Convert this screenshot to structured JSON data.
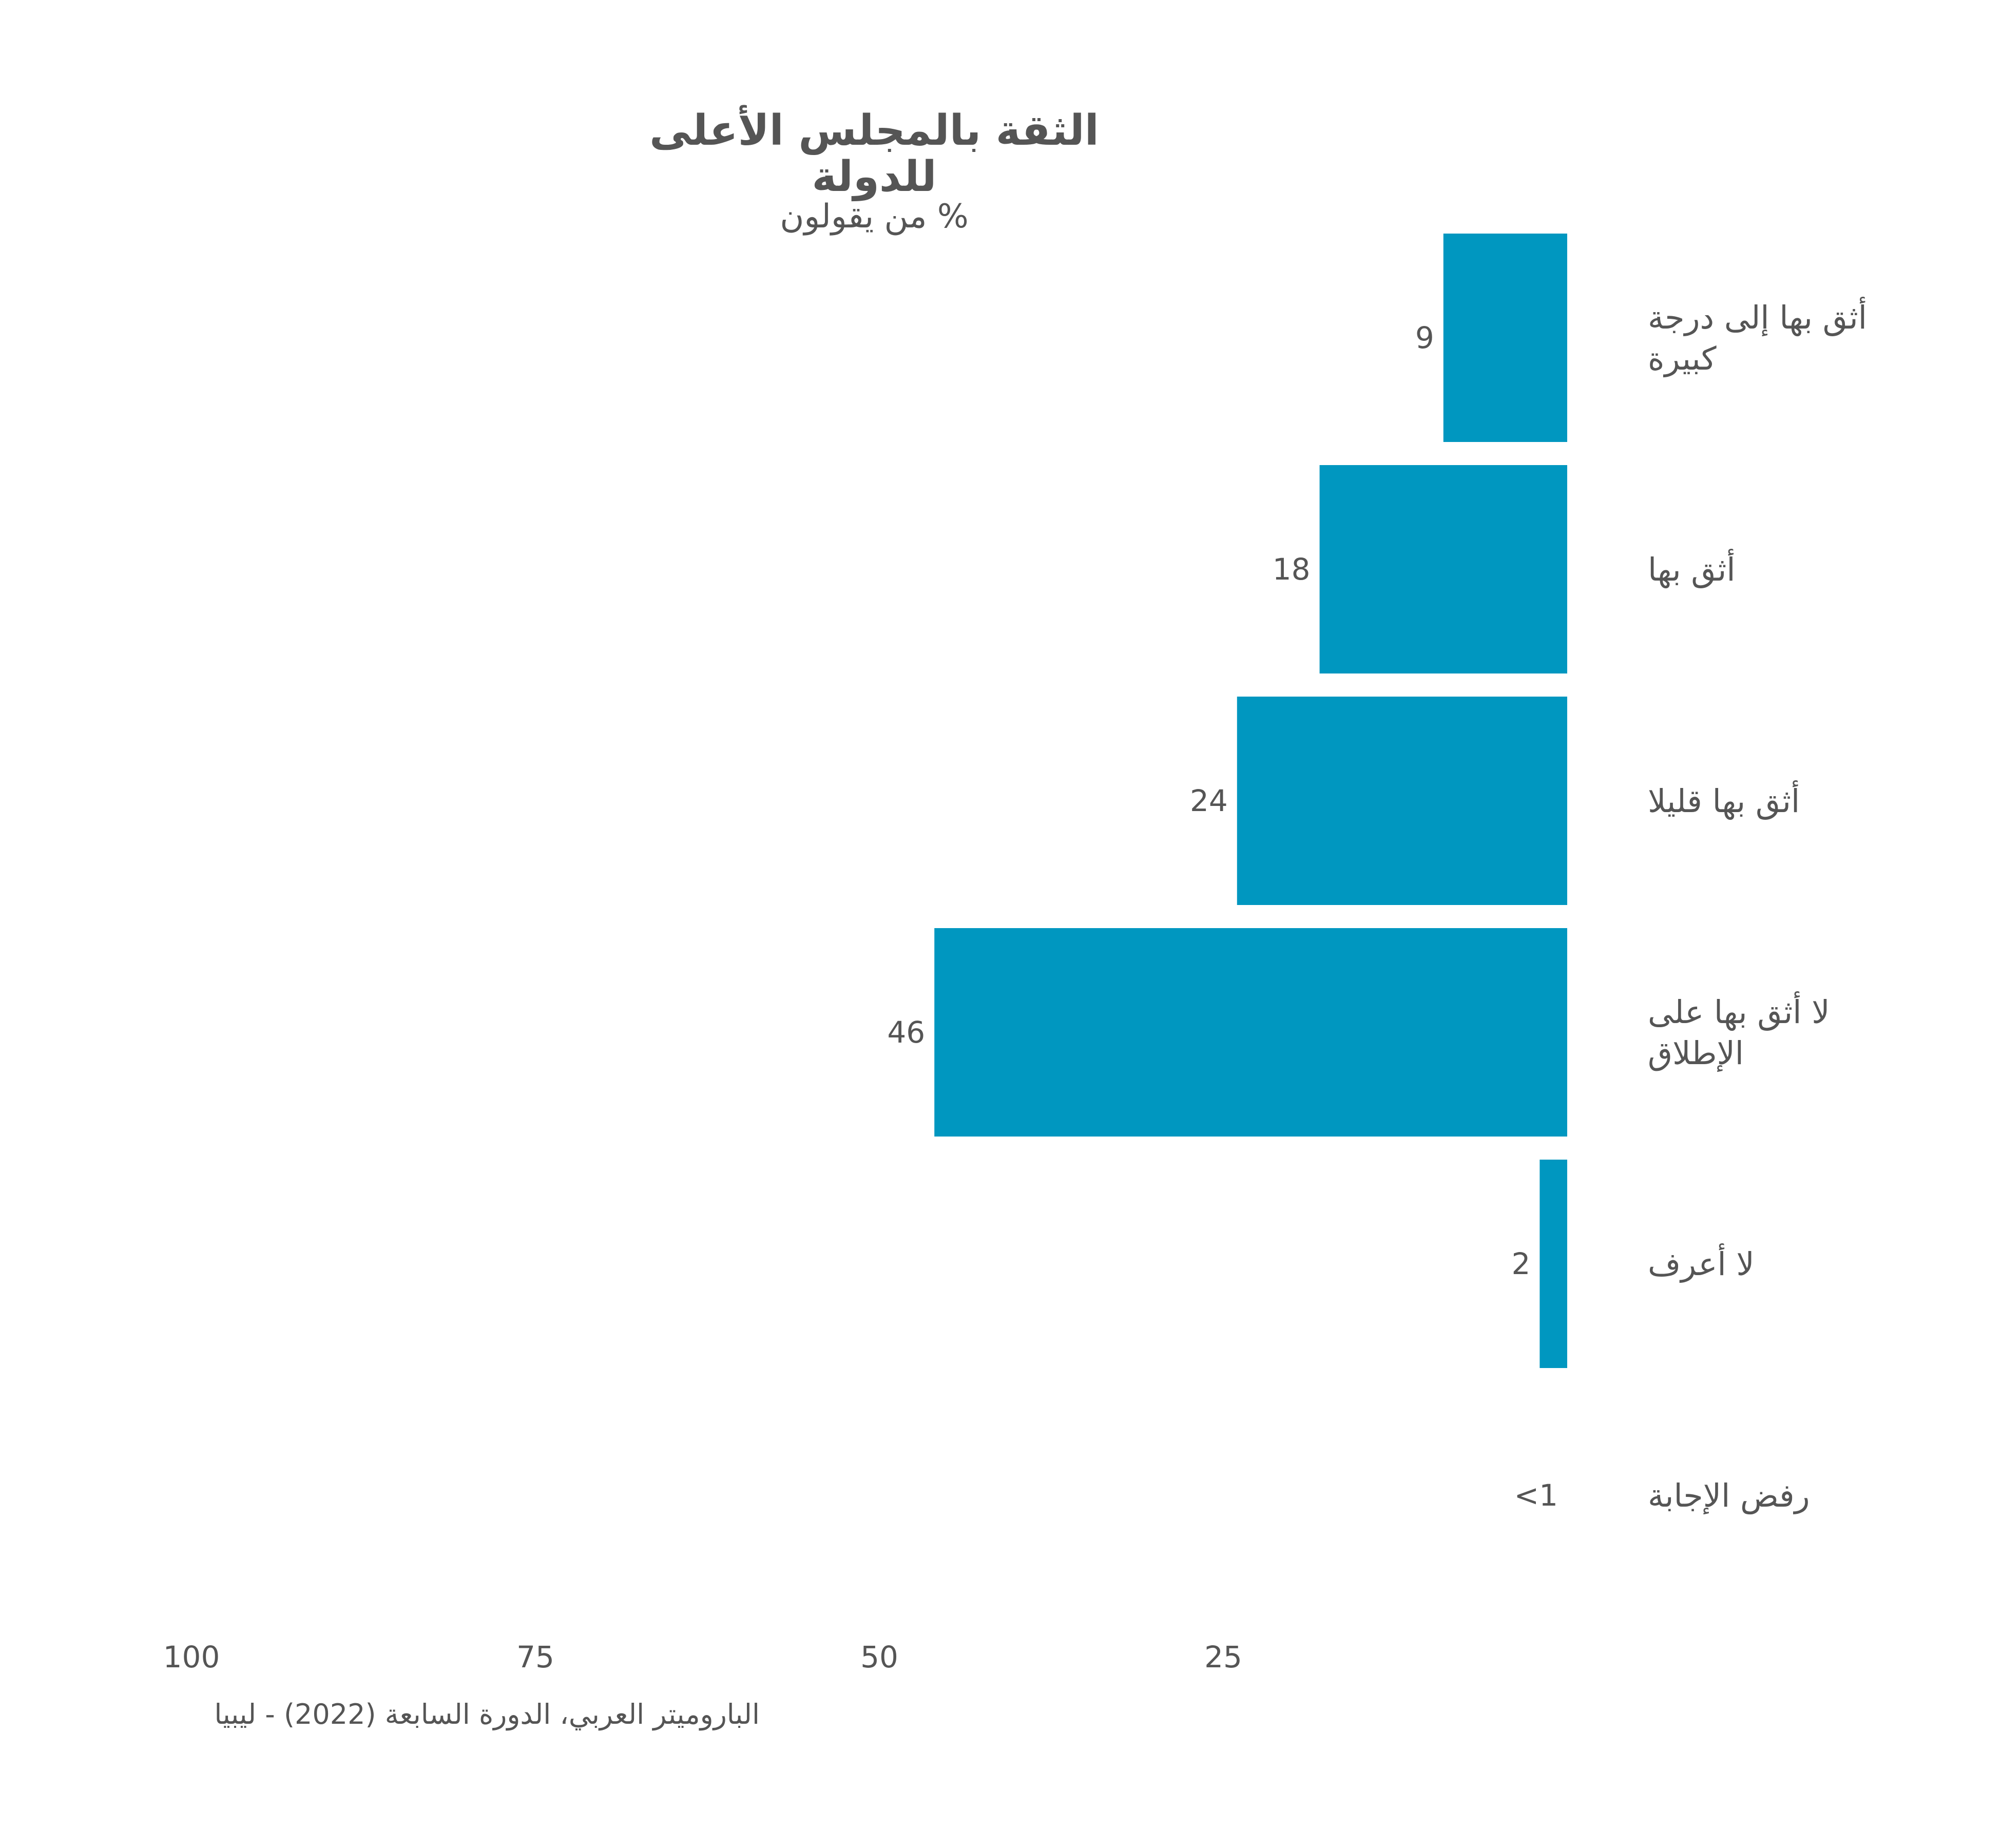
{
  "chart_data": {
    "type": "bar",
    "orientation": "horizontal",
    "title": "الثقة بالمجلس الأعلى للدولة",
    "subtitle": "% من يقولون",
    "categories": [
      "أثق بها إلى درجة كبيرة",
      "أثق بها",
      "أثق بها قليلا",
      "لا أثق بها على الإطلاق",
      "لا أعرف",
      "رفض الإجابة"
    ],
    "category_lines": [
      [
        "أثق بها إلى درجة",
        "كبيرة"
      ],
      [
        "أثق بها"
      ],
      [
        "أثق بها قليلا"
      ],
      [
        "لا أثق بها على",
        "الإطلاق"
      ],
      [
        "لا أعرف"
      ],
      [
        "رفض الإجابة"
      ]
    ],
    "values": [
      9,
      18,
      24,
      46,
      2,
      0
    ],
    "data_labels": [
      "9",
      "18",
      "24",
      "46",
      "2",
      "<1"
    ],
    "xlim": [
      0,
      100
    ],
    "x_ticks": [
      25,
      50,
      75,
      100
    ],
    "x_reversed": true,
    "bar_color": "#0097c0",
    "grid": false,
    "legend": "none",
    "source": "الباروميتر العربي، الدورة السابعة (2022) - ليبيا"
  }
}
